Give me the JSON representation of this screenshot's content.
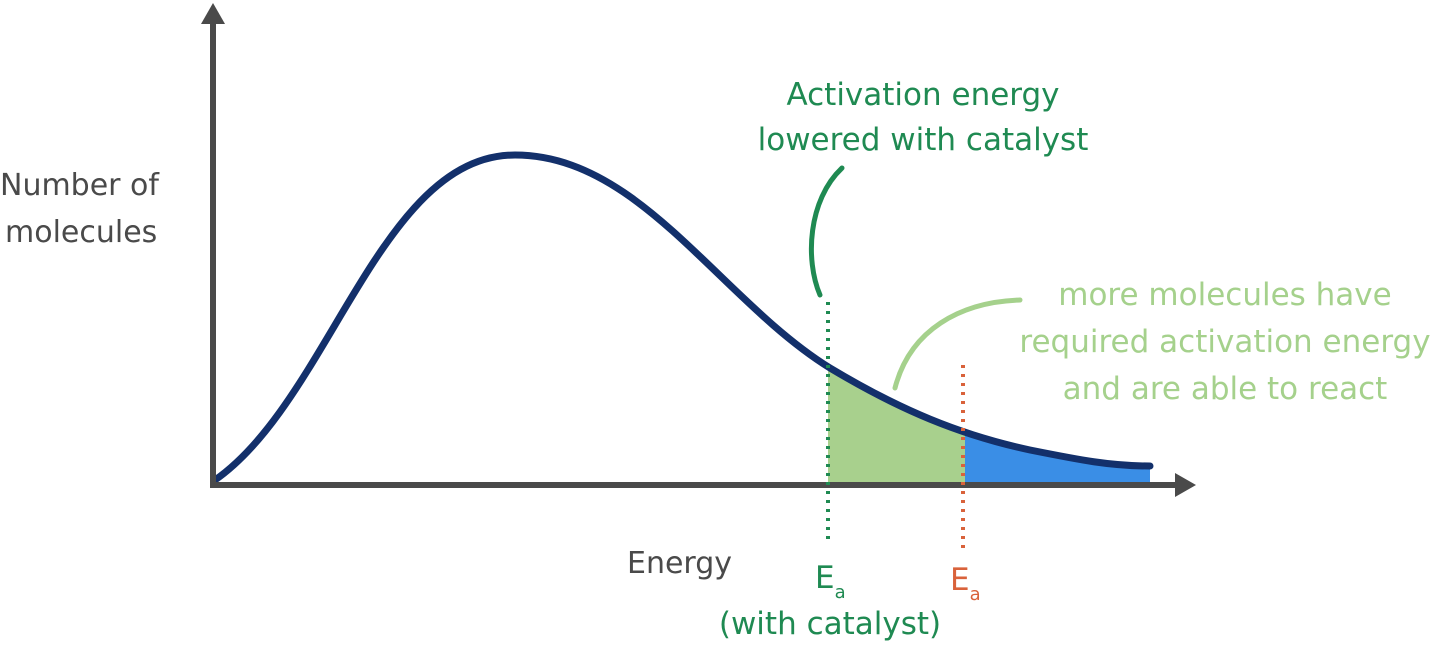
{
  "axes": {
    "y_label": [
      "Number of",
      "molecules"
    ],
    "x_label": "Energy"
  },
  "annotations": {
    "catalyst": [
      "Activation energy",
      "lowered with catalyst"
    ],
    "more_molecules": [
      "more molecules have",
      "required activation energy",
      "and are able to react"
    ]
  },
  "markers": [
    {
      "symbol": "E",
      "subscript": "a",
      "note": "(with catalyst)"
    },
    {
      "symbol": "E",
      "subscript": "a"
    }
  ]
}
